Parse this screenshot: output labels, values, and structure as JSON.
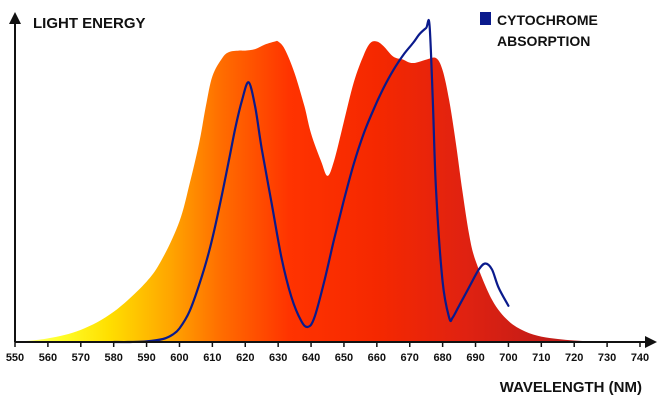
{
  "chart_data": {
    "type": "area",
    "title": "",
    "ylabel": "LIGHT ENERGY",
    "xlabel": "WAVELENGTH (NM)",
    "xlim": [
      550,
      740
    ],
    "ylim": [
      0,
      1
    ],
    "x_ticks": [
      550,
      560,
      570,
      580,
      590,
      600,
      610,
      620,
      630,
      640,
      650,
      660,
      670,
      680,
      690,
      700,
      710,
      720,
      730,
      740
    ],
    "grid": false,
    "legend": {
      "position": "top-right",
      "entries": [
        {
          "label_line1": "CYTOCHROME",
          "label_line2": "ABSORPTION",
          "color": "#0a1a8c"
        }
      ]
    },
    "series": [
      {
        "name": "Light energy",
        "style": "filled-area-spectrum-gradient",
        "x": [
          550,
          560,
          570,
          580,
          590,
          595,
          600,
          603,
          606,
          608,
          610,
          613,
          615,
          618,
          620,
          623,
          626,
          629,
          630,
          632,
          635,
          638,
          640,
          643,
          645,
          647,
          650,
          653,
          656,
          658,
          660,
          662,
          665,
          668,
          670,
          672,
          675,
          678,
          680,
          682,
          684,
          686,
          688,
          690,
          695,
          700,
          705,
          710,
          715,
          720,
          725,
          730,
          735
        ],
        "y": [
          0.0,
          0.012,
          0.04,
          0.1,
          0.2,
          0.28,
          0.4,
          0.52,
          0.66,
          0.78,
          0.88,
          0.94,
          0.96,
          0.965,
          0.965,
          0.97,
          0.985,
          0.995,
          0.995,
          0.97,
          0.89,
          0.78,
          0.69,
          0.6,
          0.55,
          0.6,
          0.73,
          0.86,
          0.95,
          0.99,
          0.995,
          0.98,
          0.945,
          0.935,
          0.925,
          0.925,
          0.935,
          0.94,
          0.9,
          0.8,
          0.66,
          0.5,
          0.36,
          0.27,
          0.14,
          0.07,
          0.035,
          0.018,
          0.01,
          0.005,
          0.002,
          0.0,
          0.0
        ]
      },
      {
        "name": "CYTOCHROME ABSORPTION",
        "color": "#0a1a8c",
        "x": [
          580,
          585,
          590,
          595,
          598,
          600,
          603,
          606,
          609,
          612,
          615,
          617,
          619,
          621,
          623,
          625,
          628,
          631,
          634,
          637,
          639,
          641,
          644,
          647,
          650,
          653,
          656,
          659,
          662,
          665,
          668,
          671,
          673,
          675,
          676,
          677,
          678,
          680,
          682,
          683,
          685,
          688,
          691,
          693,
          695,
          697,
          700
        ],
        "y": [
          0.0,
          0.0,
          0.002,
          0.01,
          0.025,
          0.045,
          0.1,
          0.19,
          0.3,
          0.44,
          0.6,
          0.71,
          0.8,
          0.86,
          0.78,
          0.64,
          0.46,
          0.28,
          0.15,
          0.07,
          0.05,
          0.08,
          0.2,
          0.34,
          0.47,
          0.59,
          0.69,
          0.77,
          0.84,
          0.9,
          0.95,
          0.99,
          1.02,
          1.04,
          1.05,
          0.8,
          0.5,
          0.2,
          0.08,
          0.08,
          0.12,
          0.18,
          0.24,
          0.26,
          0.24,
          0.18,
          0.12
        ]
      }
    ]
  }
}
